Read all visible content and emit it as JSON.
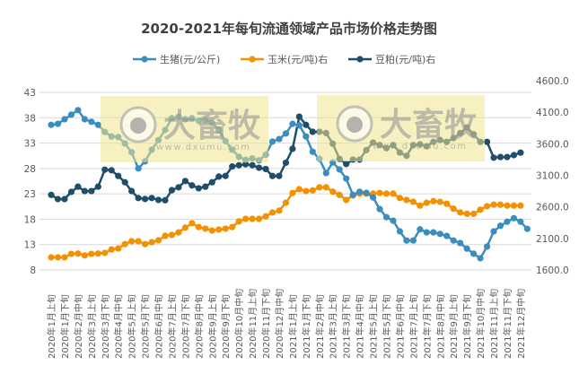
{
  "chart_data": {
    "type": "line",
    "title": "2020-2021年每旬流通领域产品市场价格走势图",
    "legend_position": "top",
    "grid": true,
    "x_labels": [
      "2020年1月上旬",
      "2020年1月下旬",
      "2020年2月中旬",
      "2020年3月上旬",
      "2020年3月下旬",
      "2020年4月中旬",
      "2020年5月上旬",
      "2020年5月下旬",
      "2020年6月中旬",
      "2020年7月上旬",
      "2020年7月下旬",
      "2020年8月中旬",
      "2020年9月上旬",
      "2020年9月下旬",
      "2020年10月中旬",
      "2020年11月上旬",
      "2020年11月下旬",
      "2020年12月中旬",
      "2021年1月上旬",
      "2021年1月下旬",
      "2021年2月中旬",
      "2021年3月上旬",
      "2021年3月下旬",
      "2021年4月中旬",
      "2021年5月上旬",
      "2021年5月下旬",
      "2021年6月中旬",
      "2021年7月上旬",
      "2021年7月下旬",
      "2021年8月中旬",
      "2021年9月上旬",
      "2021年9月下旬",
      "2021年10月中旬",
      "2021年11月上旬",
      "2021年11月下旬",
      "2021年12月中旬"
    ],
    "y_left": {
      "min": 8,
      "max": 43,
      "ticks": [
        "8",
        "13",
        "18",
        "23",
        "28",
        "33",
        "38",
        "43"
      ]
    },
    "y_right": {
      "min": 1600,
      "max": 4600,
      "ticks": [
        "1600.0",
        "2100.0",
        "2600.0",
        "3100.0",
        "3600.0",
        "4100.0",
        "4600.0"
      ]
    },
    "series": [
      {
        "name": "生猪(元/公斤)",
        "axis": "left",
        "color": "#3b8dbd",
        "values": [
          36.6,
          36.8,
          37.7,
          38.6,
          39.5,
          37.7,
          37.2,
          36.6,
          35.2,
          34.3,
          34.2,
          32.9,
          31.2,
          28.0,
          29.4,
          31.7,
          33.6,
          35.6,
          37.9,
          38.2,
          37.7,
          37.9,
          37.4,
          37.5,
          37.0,
          35.6,
          33.4,
          31.7,
          30.3,
          29.7,
          30.0,
          29.6,
          30.7,
          33.3,
          33.8,
          34.9,
          36.8,
          36.5,
          34.3,
          31.3,
          29.9,
          27.1,
          29.2,
          27.8,
          26.0,
          22.8,
          23.4,
          23.2,
          22.3,
          20.0,
          18.4,
          17.7,
          15.6,
          13.8,
          13.8,
          16.0,
          15.4,
          15.4,
          15.1,
          14.7,
          13.8,
          13.3,
          12.2,
          11.2,
          10.3,
          12.6,
          15.6,
          16.7,
          17.5,
          18.2,
          17.5,
          16.1
        ]
      },
      {
        "name": "玉米(元/吨)右",
        "axis": "right",
        "color": "#f39200",
        "values": [
          1800,
          1800,
          1800,
          1855,
          1860,
          1830,
          1855,
          1860,
          1870,
          1925,
          1940,
          2010,
          2055,
          2055,
          2010,
          2040,
          2070,
          2140,
          2155,
          2195,
          2270,
          2340,
          2280,
          2255,
          2225,
          2240,
          2255,
          2280,
          2370,
          2410,
          2410,
          2410,
          2450,
          2510,
          2540,
          2665,
          2820,
          2880,
          2850,
          2860,
          2910,
          2910,
          2840,
          2790,
          2710,
          2780,
          2810,
          2810,
          2810,
          2820,
          2810,
          2810,
          2740,
          2710,
          2680,
          2620,
          2665,
          2690,
          2680,
          2650,
          2570,
          2510,
          2490,
          2490,
          2555,
          2610,
          2635,
          2635,
          2620,
          2620,
          2620
        ]
      },
      {
        "name": "豆粕(元/吨)右",
        "axis": "right",
        "color": "#1f4e6b",
        "values": [
          2790,
          2723,
          2723,
          2837,
          2920,
          2850,
          2850,
          2920,
          3190,
          3180,
          3090,
          2990,
          2850,
          2740,
          2725,
          2740,
          2710,
          2705,
          2865,
          2910,
          3010,
          2940,
          2895,
          2920,
          2990,
          3080,
          3090,
          3240,
          3260,
          3275,
          3260,
          3220,
          3200,
          3090,
          3090,
          3300,
          3520,
          4030,
          3900,
          3790,
          3790,
          3770,
          3600,
          3360,
          3280,
          3350,
          3350,
          3500,
          3620,
          3580,
          3530,
          3580,
          3460,
          3410,
          3580,
          3590,
          3560,
          3630,
          3660,
          3630,
          3690,
          3770,
          3860,
          3750,
          3630,
          3630,
          3380,
          3390,
          3390,
          3420,
          3460
        ]
      }
    ]
  },
  "watermark": {
    "brand": "大畜牧",
    "url": "www.dxumu.com"
  }
}
